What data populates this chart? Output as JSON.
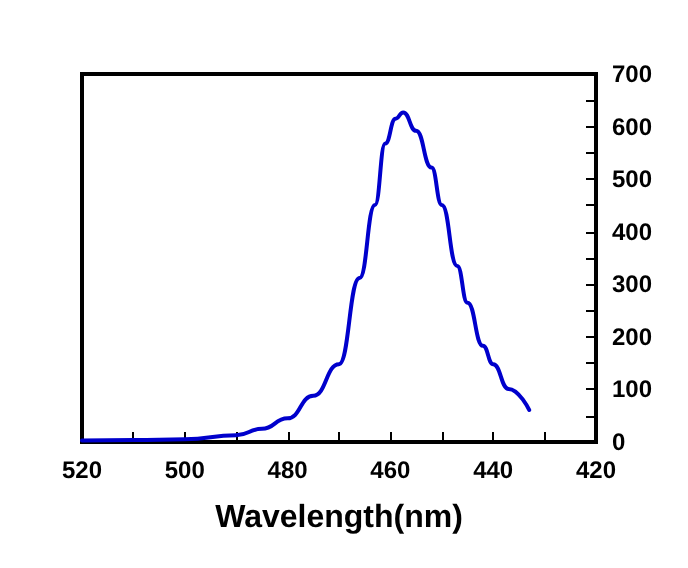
{
  "chart_data": {
    "type": "line",
    "xlabel": "Wavelength(nm)",
    "x": [
      520,
      510,
      500,
      490,
      485,
      480,
      475,
      470,
      466,
      463,
      461,
      459,
      457.5,
      455,
      452,
      450,
      447,
      445,
      442,
      440,
      437,
      433
    ],
    "series": [
      {
        "color": "#0000cc",
        "values": [
          3,
          4,
          5,
          13,
          25,
          45,
          88,
          148,
          312,
          451,
          568,
          615,
          627,
          592,
          522,
          451,
          335,
          265,
          183,
          148,
          101,
          61
        ]
      }
    ],
    "xlim": [
      520,
      420
    ],
    "xticks": [
      520,
      500,
      480,
      460,
      440,
      420
    ],
    "ylim": [
      0,
      700
    ],
    "yticks": [
      0,
      100,
      200,
      300,
      400,
      500,
      600,
      700
    ],
    "grid": false,
    "marker": "none",
    "line_style": "solid"
  }
}
